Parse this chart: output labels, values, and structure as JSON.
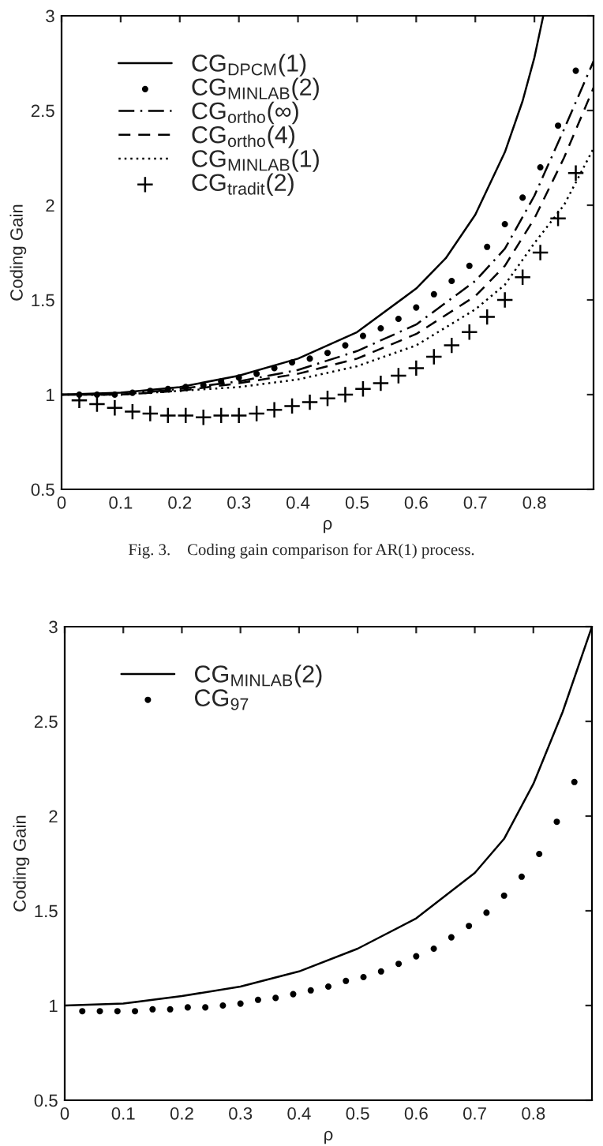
{
  "chart_data": [
    {
      "type": "line",
      "xlabel": "ρ",
      "ylabel": "Coding Gain",
      "xlim": [
        0,
        0.9
      ],
      "ylim": [
        0.5,
        3
      ],
      "xticks": [
        0,
        0.1,
        0.2,
        0.3,
        0.4,
        0.5,
        0.6,
        0.7,
        0.8
      ],
      "yticks": [
        0.5,
        1,
        1.5,
        2,
        2.5,
        3
      ],
      "grid": false,
      "legend": "top left",
      "annotations": [
        "Fig. 3.    Coding gain comparison for AR(1) process."
      ],
      "series": [
        {
          "name": "CG$_{DPCM}$(1)",
          "color": "#000000",
          "line_style": "solid",
          "marker": "none",
          "x": [
            0,
            0.1,
            0.2,
            0.3,
            0.4,
            0.5,
            0.6,
            0.65,
            0.7,
            0.75,
            0.78,
            0.8,
            0.815
          ],
          "values": [
            1,
            1.01,
            1.04,
            1.1,
            1.19,
            1.33,
            1.56,
            1.72,
            1.95,
            2.28,
            2.55,
            2.78,
            3.0
          ]
        },
        {
          "name": "CG$_{MINLAB}$(2)",
          "type": "scatter",
          "color": "#000000",
          "marker": "circle",
          "x": [
            0.03,
            0.06,
            0.09,
            0.12,
            0.15,
            0.18,
            0.21,
            0.24,
            0.27,
            0.3,
            0.33,
            0.36,
            0.39,
            0.42,
            0.45,
            0.48,
            0.51,
            0.54,
            0.57,
            0.6,
            0.63,
            0.66,
            0.69,
            0.72,
            0.75,
            0.78,
            0.81,
            0.84,
            0.87
          ],
          "values": [
            1.0,
            1.0,
            1.0,
            1.01,
            1.02,
            1.03,
            1.04,
            1.05,
            1.07,
            1.09,
            1.11,
            1.14,
            1.17,
            1.19,
            1.22,
            1.26,
            1.31,
            1.35,
            1.4,
            1.46,
            1.53,
            1.6,
            1.68,
            1.78,
            1.9,
            2.04,
            2.2,
            2.42,
            2.71
          ]
        },
        {
          "name": "CG$_{ortho}$(∞)",
          "color": "#000000",
          "line_style": "dashdot",
          "marker": "none",
          "x": [
            0,
            0.1,
            0.2,
            0.3,
            0.4,
            0.5,
            0.6,
            0.7,
            0.75,
            0.8,
            0.85,
            0.9
          ],
          "values": [
            1,
            1.0,
            1.03,
            1.07,
            1.13,
            1.23,
            1.37,
            1.6,
            1.77,
            2.05,
            2.4,
            2.76
          ]
        },
        {
          "name": "CG$_{ortho}$(4)",
          "color": "#000000",
          "line_style": "dashed",
          "marker": "none",
          "x": [
            0,
            0.1,
            0.2,
            0.3,
            0.4,
            0.5,
            0.6,
            0.7,
            0.75,
            0.8,
            0.85,
            0.9
          ],
          "values": [
            1,
            1.0,
            1.02,
            1.06,
            1.11,
            1.19,
            1.32,
            1.52,
            1.68,
            1.93,
            2.25,
            2.62
          ]
        },
        {
          "name": "CG$_{MINLAB}$(1)",
          "color": "#000000",
          "line_style": "dotted",
          "marker": "none",
          "x": [
            0,
            0.1,
            0.2,
            0.3,
            0.4,
            0.5,
            0.6,
            0.7,
            0.75,
            0.8,
            0.85,
            0.9
          ],
          "values": [
            1,
            1.0,
            1.02,
            1.04,
            1.08,
            1.15,
            1.26,
            1.45,
            1.58,
            1.8,
            2.0,
            2.3
          ]
        },
        {
          "name": "CG$_{tradit}$(2)",
          "type": "scatter",
          "color": "#000000",
          "marker": "cross",
          "x": [
            0.03,
            0.06,
            0.09,
            0.12,
            0.15,
            0.18,
            0.21,
            0.24,
            0.27,
            0.3,
            0.33,
            0.36,
            0.39,
            0.42,
            0.45,
            0.48,
            0.51,
            0.54,
            0.57,
            0.6,
            0.63,
            0.66,
            0.69,
            0.72,
            0.75,
            0.78,
            0.81,
            0.84,
            0.87
          ],
          "values": [
            0.97,
            0.95,
            0.93,
            0.91,
            0.9,
            0.89,
            0.89,
            0.88,
            0.89,
            0.89,
            0.9,
            0.92,
            0.94,
            0.96,
            0.98,
            1.0,
            1.03,
            1.06,
            1.1,
            1.14,
            1.2,
            1.26,
            1.33,
            1.41,
            1.5,
            1.62,
            1.75,
            1.93,
            2.17
          ]
        }
      ]
    },
    {
      "type": "line",
      "xlabel": "ρ",
      "ylabel": "Coding Gain",
      "xlim": [
        0,
        0.9
      ],
      "ylim": [
        0.5,
        3
      ],
      "xticks": [
        0,
        0.1,
        0.2,
        0.3,
        0.4,
        0.5,
        0.6,
        0.7,
        0.8
      ],
      "yticks": [
        0.5,
        1,
        1.5,
        2,
        2.5,
        3
      ],
      "grid": false,
      "legend": "top left",
      "series": [
        {
          "name": "CG$_{MINLAB}$(2)",
          "color": "#000000",
          "line_style": "solid",
          "marker": "none",
          "x": [
            0,
            0.1,
            0.2,
            0.3,
            0.4,
            0.5,
            0.6,
            0.7,
            0.75,
            0.8,
            0.85,
            0.9
          ],
          "values": [
            1,
            1.01,
            1.05,
            1.1,
            1.18,
            1.3,
            1.46,
            1.7,
            1.88,
            2.17,
            2.55,
            3.0
          ]
        },
        {
          "name": "CG$_{97}$",
          "type": "scatter",
          "color": "#000000",
          "marker": "circle",
          "x": [
            0.03,
            0.06,
            0.09,
            0.12,
            0.15,
            0.18,
            0.21,
            0.24,
            0.27,
            0.3,
            0.33,
            0.36,
            0.39,
            0.42,
            0.45,
            0.48,
            0.51,
            0.54,
            0.57,
            0.6,
            0.63,
            0.66,
            0.69,
            0.72,
            0.75,
            0.78,
            0.81,
            0.84,
            0.87
          ],
          "values": [
            0.97,
            0.97,
            0.97,
            0.97,
            0.98,
            0.98,
            0.99,
            0.99,
            1.0,
            1.01,
            1.03,
            1.04,
            1.06,
            1.08,
            1.1,
            1.13,
            1.15,
            1.18,
            1.22,
            1.26,
            1.3,
            1.36,
            1.42,
            1.49,
            1.58,
            1.68,
            1.8,
            1.97,
            2.18
          ]
        }
      ]
    }
  ]
}
